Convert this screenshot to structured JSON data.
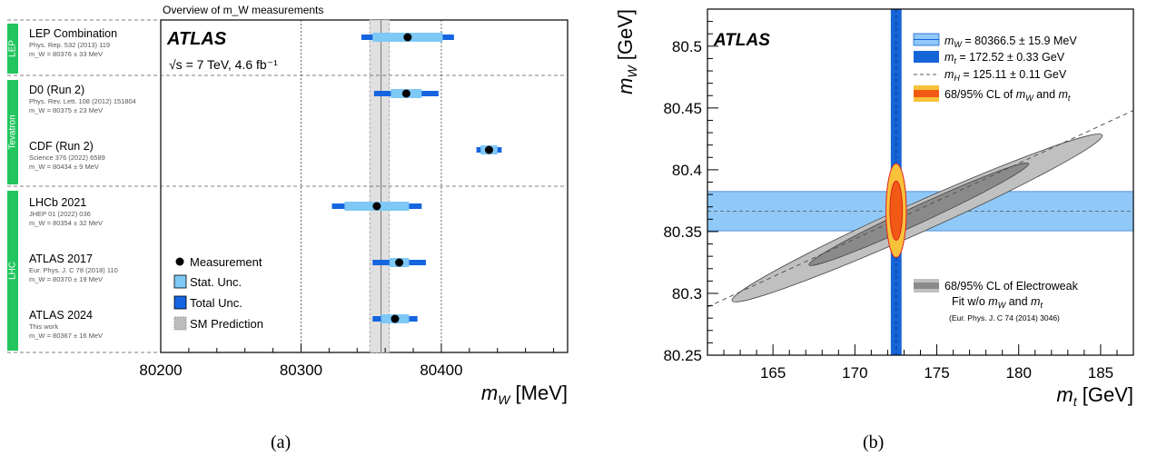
{
  "panels": {
    "a": "(a)",
    "b": "(b)"
  },
  "chart_data": [
    {
      "type": "scatter",
      "title": "Overview of m_W measurements",
      "experiment": "ATLAS",
      "energy_label": "√s = 7 TeV, 4.6 fb⁻¹",
      "xlabel_sym": "m",
      "xlabel_sub": "W",
      "xlabel_unit": " [MeV]",
      "xlim": [
        80200,
        80490
      ],
      "xticks": [
        80200,
        80300,
        80400
      ],
      "sm_prediction": {
        "center": 80357,
        "band": [
          80349,
          80363
        ],
        "label": "SM Prediction"
      },
      "groups": [
        {
          "name": "LEP",
          "color": "#22c55e"
        },
        {
          "name": "Tevatron",
          "color": "#22c55e"
        },
        {
          "name": "LHC",
          "color": "#22c55e"
        }
      ],
      "measurements": [
        {
          "name": "LEP Combination",
          "ref": "Phys. Rep. 532 (2013) 119",
          "value_text": "m_W = 80376 ± 33 MeV",
          "value": 80376,
          "stat": 25,
          "total": 33
        },
        {
          "name": "D0 (Run 2)",
          "ref": "Phys. Rev. Lett. 108 (2012) 151804",
          "value_text": "m_W = 80375 ± 23 MeV",
          "value": 80375,
          "stat": 11,
          "total": 23
        },
        {
          "name": "CDF (Run 2)",
          "ref": "Science 376 (2022) 6589",
          "value_text": "m_W = 80434 ± 9 MeV",
          "value": 80434,
          "stat": 6,
          "total": 9
        },
        {
          "name": "LHCb 2021",
          "ref": "JHEP 01 (2022) 036",
          "value_text": "m_W = 80354 ± 32 MeV",
          "value": 80354,
          "stat": 23,
          "total": 32
        },
        {
          "name": "ATLAS 2017",
          "ref": "Eur. Phys. J. C 78 (2018) 110",
          "value_text": "m_W = 80370 ± 19 MeV",
          "value": 80370,
          "stat": 7,
          "total": 19
        },
        {
          "name": "ATLAS 2024",
          "ref": "This work",
          "value_text": "m_W = 80367 ± 16 MeV",
          "value": 80367,
          "stat": 10,
          "total": 16
        }
      ],
      "legend": {
        "measurement": "Measurement",
        "stat": "Stat. Unc.",
        "total": "Total Unc.",
        "sm": "SM Prediction"
      },
      "colors": {
        "stat": "#7dc8f5",
        "total": "#1565e0",
        "group": "#22c55e",
        "sm": "#bdbdbd"
      }
    },
    {
      "type": "contour",
      "experiment": "ATLAS",
      "xlabel_sym": "m",
      "xlabel_sub": "t",
      "xlabel_unit": " [GeV]",
      "ylabel_sym": "m",
      "ylabel_sub": "W",
      "ylabel_unit": " [GeV]",
      "xlim": [
        161,
        187
      ],
      "ylim": [
        80.25,
        80.53
      ],
      "xticks": [
        165,
        170,
        175,
        180,
        185
      ],
      "yticks": [
        80.25,
        80.3,
        80.35,
        80.4,
        80.45,
        80.5
      ],
      "mw": {
        "value": 80.3665,
        "err": 0.0159
      },
      "mt": {
        "value": 172.52,
        "err": 0.33
      },
      "mh_line": {
        "x": [
          161,
          187
        ],
        "y": [
          80.289,
          80.448
        ]
      },
      "ew_ellipse": {
        "center": [
          173.8,
          80.361
        ],
        "outer_ends": [
          [
            162.5,
            80.294
          ],
          [
            185.1,
            80.428
          ]
        ],
        "outer_halfwidth": 0.012,
        "inner_ends": [
          [
            167.2,
            80.323
          ],
          [
            180.6,
            80.405
          ]
        ],
        "inner_halfwidth": 0.007
      },
      "cl_contour": {
        "center": [
          172.52,
          80.367
        ],
        "outer_semi": [
          0.62,
          0.038
        ],
        "inner_semi": [
          0.38,
          0.024
        ]
      },
      "legend": [
        {
          "sym": "m",
          "sub": "W",
          "text": " = 80366.5 ± 15.9 MeV"
        },
        {
          "sym": "m",
          "sub": "t",
          "text": " = 172.52 ± 0.33 GeV"
        },
        {
          "sym": "m",
          "sub": "H",
          "text": " = 125.11 ± 0.11 GeV"
        },
        {
          "text": "68/95% CL of ",
          "sym": "m",
          "sub": "W",
          "text2": " and ",
          "sym2": "m",
          "sub2": "t"
        }
      ],
      "ew_legend": {
        "line1": "68/95% CL of Electroweak",
        "line2_pre": "Fit w/o ",
        "line2_mid": " and ",
        "ref": "(Eur. Phys. J. C 74 (2014) 3046)"
      },
      "colors": {
        "mw_band": "#90c8f8",
        "mt_band": "#1565d8",
        "ew_outer": "#c0c0c0",
        "ew_inner": "#8a8a8a",
        "cl_outer": "#f7c23a",
        "cl_inner": "#f05a14"
      }
    }
  ]
}
